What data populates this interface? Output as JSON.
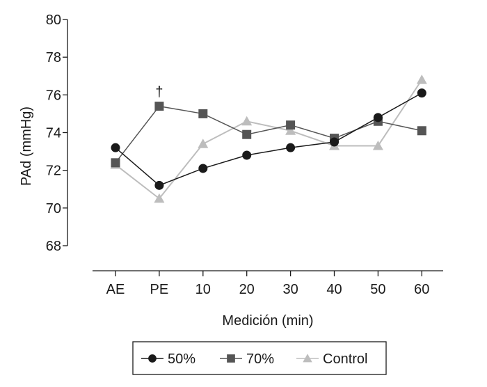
{
  "chart_data": {
    "type": "line",
    "title": "",
    "xlabel": "Medición (min)",
    "ylabel": "PAd (mmHg)",
    "categories": [
      "AE",
      "PE",
      "10",
      "20",
      "30",
      "40",
      "50",
      "60"
    ],
    "ylim": [
      68,
      80
    ],
    "yticks": [
      "68",
      "70",
      "72",
      "74",
      "76",
      "78",
      "80"
    ],
    "grid": false,
    "legend_position": "bottom",
    "series": [
      {
        "name": "50%",
        "marker": "circle",
        "color": "#1a1a1a",
        "values": [
          73.2,
          71.2,
          72.1,
          72.8,
          73.2,
          73.5,
          74.8,
          76.1
        ]
      },
      {
        "name": "70%",
        "marker": "square",
        "color": "#555555",
        "values": [
          72.4,
          75.4,
          75.0,
          73.9,
          74.4,
          73.7,
          74.6,
          74.1
        ]
      },
      {
        "name": "Control",
        "marker": "triangle",
        "color": "#bdbdbd",
        "values": [
          72.3,
          70.5,
          73.4,
          74.6,
          74.1,
          73.3,
          73.3,
          76.8
        ]
      }
    ],
    "annotations": [
      {
        "text": "†",
        "category": "PE",
        "series": "70%"
      }
    ]
  }
}
